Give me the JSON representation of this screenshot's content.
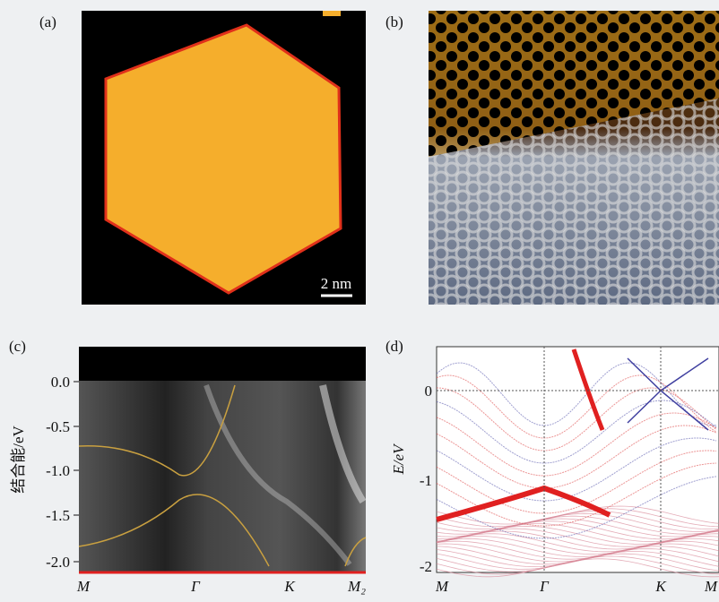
{
  "panels": {
    "a": {
      "label": "(a)",
      "scale_bar": "2 nm"
    },
    "b": {
      "label": "(b)"
    },
    "c": {
      "label": "(c)",
      "y_axis_title": "结合能/eV",
      "yticks": [
        "0.0",
        "-0.5",
        "-1.0",
        "-1.5",
        "-2.0"
      ],
      "xticks": [
        "M",
        "Γ",
        "K",
        "M₂"
      ]
    },
    "d": {
      "label": "(d)",
      "y_axis_title": "E/eV",
      "yticks": [
        "0",
        "-1",
        "-2"
      ],
      "xticks": [
        "M",
        "Γ",
        "K",
        "M"
      ]
    }
  }
}
